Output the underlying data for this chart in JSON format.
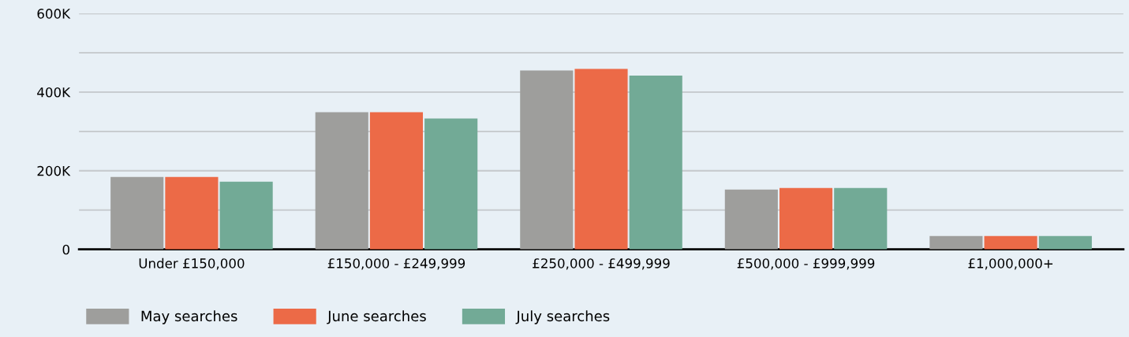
{
  "chart_data": {
    "type": "bar",
    "categories": [
      "Under £150,000",
      "£150,000 - £249,999",
      "£250,000 - £499,999",
      "£500,000 - £999,999",
      "£1,000,000+"
    ],
    "series": [
      {
        "name": "May searches",
        "color": "#9e9e9c",
        "values": [
          184000,
          349000,
          455000,
          152000,
          34000
        ]
      },
      {
        "name": "June searches",
        "color": "#ec6a47",
        "values": [
          184000,
          349000,
          459000,
          156000,
          34000
        ]
      },
      {
        "name": "July searches",
        "color": "#72aa96",
        "values": [
          172000,
          333000,
          442000,
          156000,
          34000
        ]
      }
    ],
    "ylim": [
      0,
      600000
    ],
    "yticks": [
      {
        "value": 0,
        "label": "0"
      },
      {
        "value": 100000,
        "label": null
      },
      {
        "value": 200000,
        "label": "200K"
      },
      {
        "value": 300000,
        "label": null
      },
      {
        "value": 400000,
        "label": "400K"
      },
      {
        "value": 500000,
        "label": null
      },
      {
        "value": 600000,
        "label": "600K"
      }
    ],
    "grid": "y",
    "legend": "bottom left"
  }
}
